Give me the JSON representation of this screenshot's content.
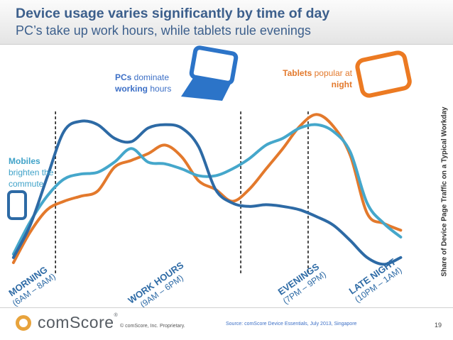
{
  "header": {
    "title": "Device usage varies significantly by time of day",
    "subtitle": "PC’s take up work hours, while tablets rule evenings"
  },
  "annotations": {
    "pcs": {
      "bold": "PCs",
      "rest1": " dominate",
      "bold2": "working",
      "rest2": " hours"
    },
    "tablets": {
      "bold": "Tablets",
      "rest1": " popular at",
      "bold2": "night"
    },
    "mobiles": {
      "bold": "Mobiles",
      "rest1": "brighten the",
      "rest2": "commute"
    }
  },
  "colors": {
    "title": "#3c5f8c",
    "pc": "#2d6aa5",
    "mobile": "#45a7cb",
    "tablet": "#e3792c",
    "divider": "#222222"
  },
  "icons": [
    "laptop-icon",
    "tablet-icon",
    "phone-icon"
  ],
  "chart_data": {
    "type": "line",
    "title": "Device usage varies significantly by time of day",
    "ylabel": "Share of Device Page Traffic on a Typical Workday",
    "xlabel": "",
    "x": [
      0,
      1,
      2,
      3,
      4,
      5,
      6,
      7,
      8,
      9,
      10,
      11,
      12,
      13,
      14,
      15,
      16,
      17,
      18,
      19,
      20,
      21,
      22,
      23
    ],
    "xlim": [
      -0.5,
      24.5
    ],
    "ylim": [
      0,
      100
    ],
    "axes_visible": false,
    "grid": false,
    "series": [
      {
        "name": "PCs",
        "color": "#2d6aa5",
        "values": [
          8,
          27,
          55,
          82,
          88,
          86,
          78,
          76,
          84,
          86,
          84,
          73,
          48,
          40,
          38,
          39,
          38,
          36,
          32,
          27,
          18,
          8,
          4,
          8
        ]
      },
      {
        "name": "Mobiles",
        "color": "#45a7cb",
        "values": [
          10,
          29,
          44,
          54,
          57,
          58,
          64,
          72,
          64,
          63,
          60,
          56,
          56,
          60,
          66,
          74,
          78,
          84,
          86,
          82,
          70,
          40,
          28,
          20
        ]
      },
      {
        "name": "Tablets",
        "color": "#e3792c",
        "values": [
          5,
          23,
          36,
          41,
          44,
          47,
          61,
          65,
          69,
          74,
          67,
          53,
          48,
          41,
          48,
          60,
          72,
          85,
          92,
          85,
          68,
          34,
          28,
          24
        ]
      }
    ],
    "dividers_at_x": [
      2.5,
      13.5,
      17.5
    ],
    "periods": [
      {
        "name": "MORNING",
        "range": "(6AM – 8AM)"
      },
      {
        "name": "WORK HOURS",
        "range": "(9AM – 6PM)"
      },
      {
        "name": "EVENINGS",
        "range": "(7PM – 9PM)"
      },
      {
        "name": "LATE NIGHT",
        "range": "(10PM – 1AM)"
      }
    ]
  },
  "footer": {
    "brand": "comScore",
    "brand_mark": "®",
    "copyright": "© comScore, Inc.",
    "proprietary": "Proprietary.",
    "source": "Source: comScore Device Essentials, July 2013, Singapore",
    "page_number": "19"
  }
}
